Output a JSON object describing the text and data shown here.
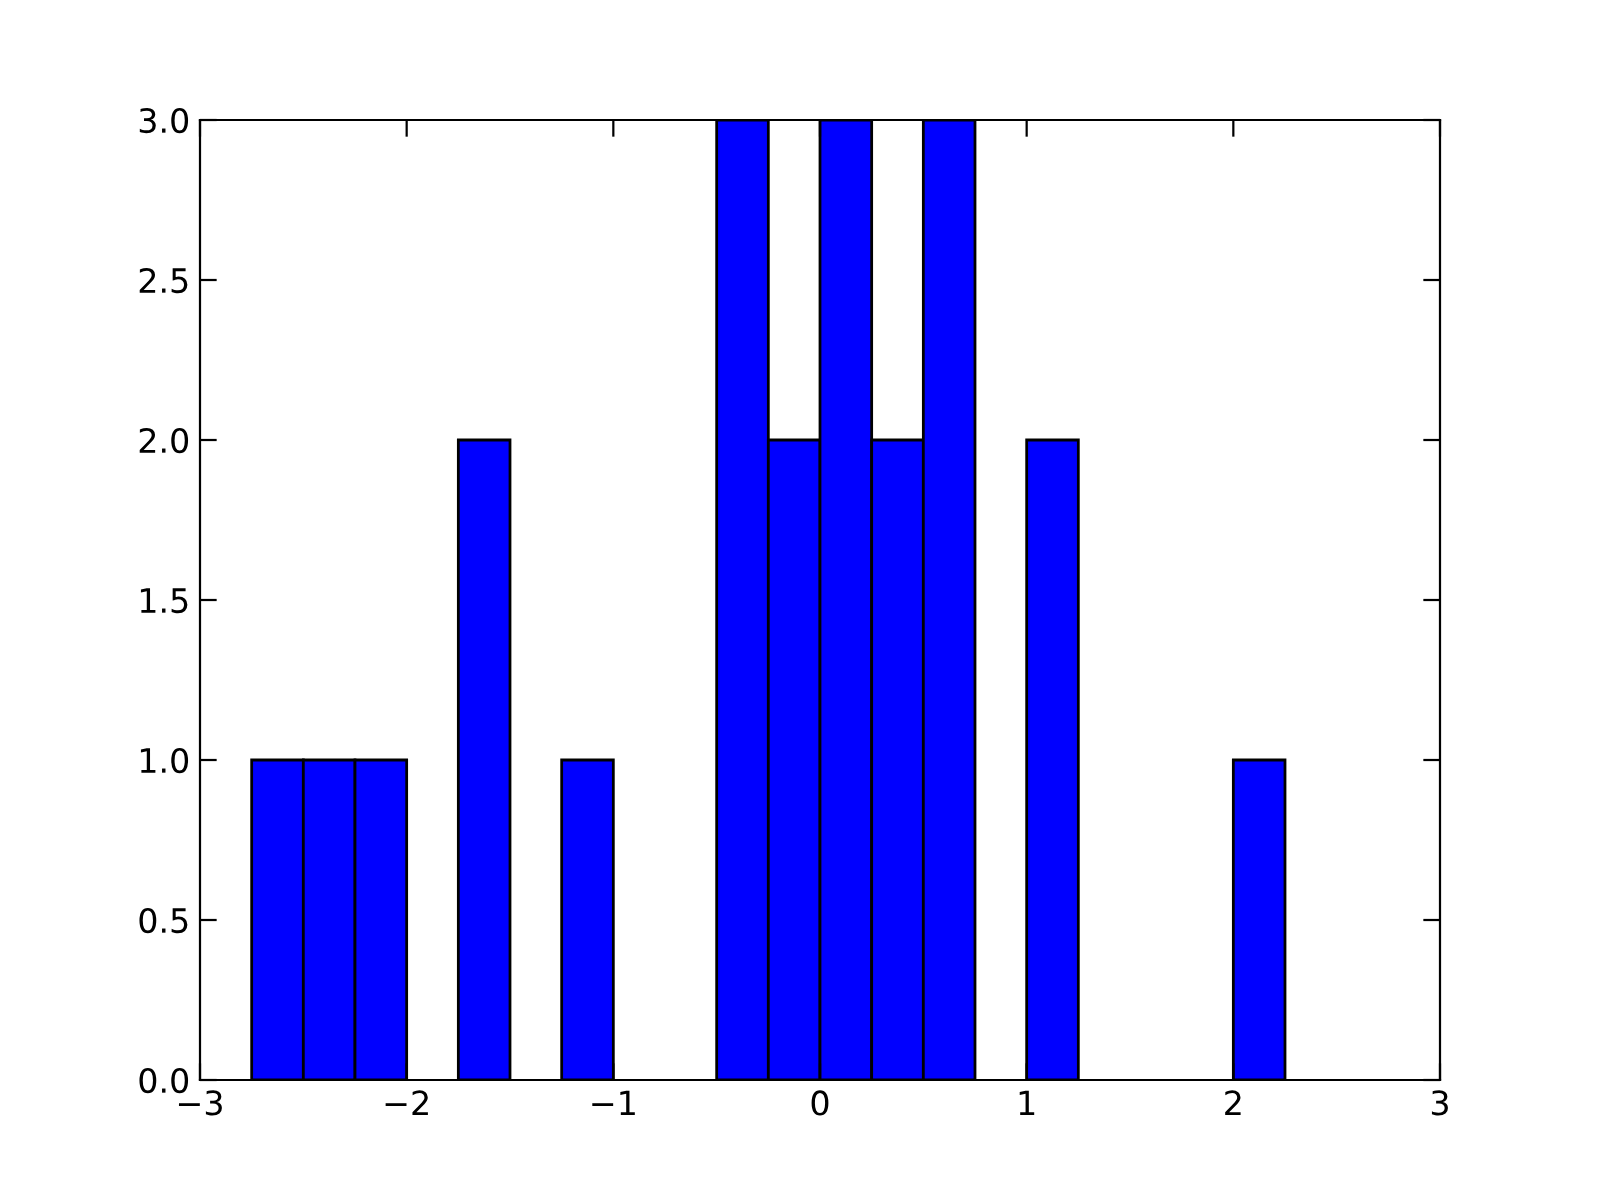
{
  "chart_data": {
    "type": "histogram",
    "bins": [
      -2.75,
      -2.5,
      -2.25,
      -2.0,
      -1.75,
      -1.5,
      -1.25,
      -1.0,
      -0.75,
      -0.5,
      -0.25,
      0.0,
      0.25,
      0.5,
      0.75,
      1.0,
      1.25,
      1.5,
      1.75,
      2.0,
      2.25
    ],
    "values": [
      1,
      1,
      1,
      0,
      2,
      0,
      1,
      0,
      0,
      3,
      2,
      3,
      2,
      3,
      0,
      2,
      0,
      0,
      0,
      1
    ],
    "color": "#0000ff",
    "xlim": [
      -3,
      3
    ],
    "xticks": [
      {
        "value": -3,
        "label": "−3"
      },
      {
        "value": -2,
        "label": "−2"
      },
      {
        "value": -1,
        "label": "−1"
      },
      0,
      1,
      2,
      3
    ],
    "ylim": [
      0,
      3
    ],
    "yticks": [
      {
        "value": 0,
        "label": "0.0"
      },
      0.5,
      {
        "value": 1,
        "label": "1.0"
      },
      1.5,
      {
        "value": 2,
        "label": "2.0"
      },
      2.5,
      {
        "value": 3,
        "label": "3.0"
      }
    ],
    "grid": false
  }
}
